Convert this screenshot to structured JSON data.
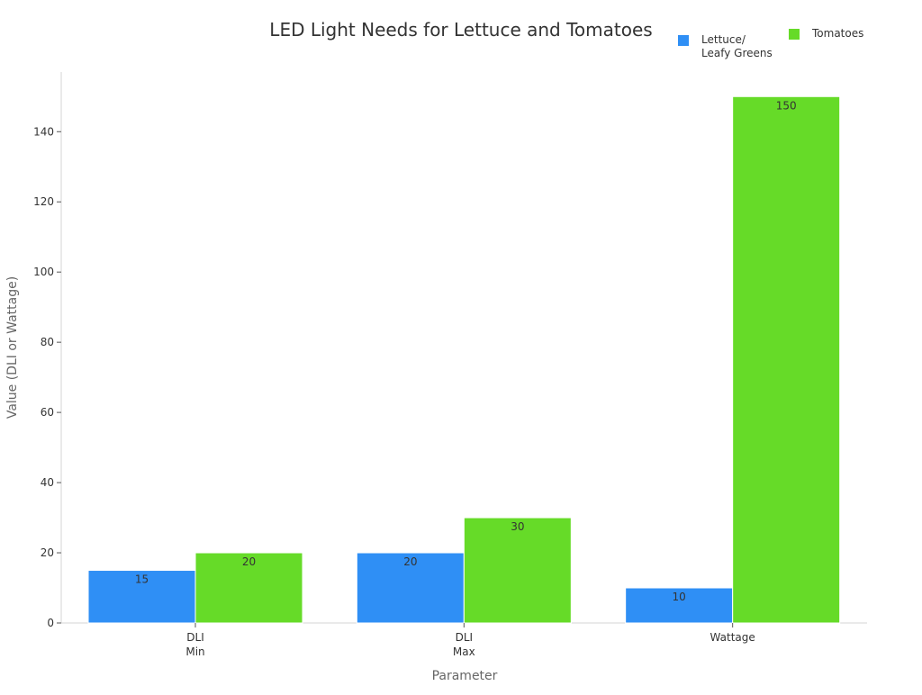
{
  "chart_data": {
    "type": "bar",
    "title": "LED Light Needs for Lettuce and Tomatoes",
    "xlabel": "Parameter",
    "ylabel": "Value (DLI or Wattage)",
    "categories": [
      [
        "DLI",
        "Min"
      ],
      [
        "DLI",
        "Max"
      ],
      [
        "Wattage"
      ]
    ],
    "series": [
      {
        "name": [
          "Lettuce/",
          "Leafy Greens"
        ],
        "color": "#2f8ff5",
        "values": [
          15,
          20,
          10
        ],
        "labels": [
          "15",
          "20",
          "10"
        ]
      },
      {
        "name": [
          "Tomatoes"
        ],
        "color": "#66db28",
        "values": [
          20,
          30,
          150
        ],
        "labels": [
          "20",
          "30",
          "150"
        ]
      }
    ],
    "ylim": [
      0,
      157
    ],
    "yticks": [
      0,
      20,
      40,
      60,
      80,
      100,
      120,
      140
    ],
    "grid": false,
    "legend": "top-right"
  }
}
